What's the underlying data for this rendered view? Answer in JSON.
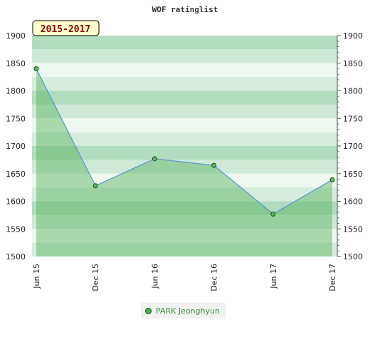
{
  "chart_data": {
    "type": "area",
    "title": "WOF ratinglist",
    "period_label": "2015-2017",
    "categories": [
      "Jun 15",
      "Dec 15",
      "Jun 16",
      "Dec 16",
      "Jun 17",
      "Dec 17"
    ],
    "ylim": [
      1500,
      1900
    ],
    "y_ticks": [
      1500,
      1550,
      1600,
      1650,
      1700,
      1750,
      1800,
      1850,
      1900
    ],
    "grid": true,
    "legend_position": "bottom-center",
    "series": [
      {
        "name": "PARK Jeonghyun",
        "values": [
          1840,
          1628,
          1677,
          1665,
          1577,
          1639
        ]
      }
    ],
    "colors": {
      "line": "#5b9bd5",
      "fill": "#4caf50",
      "marker": "#5cb85c",
      "band_dark": "#b2dcc0",
      "band_light": "#eef7f0"
    }
  }
}
